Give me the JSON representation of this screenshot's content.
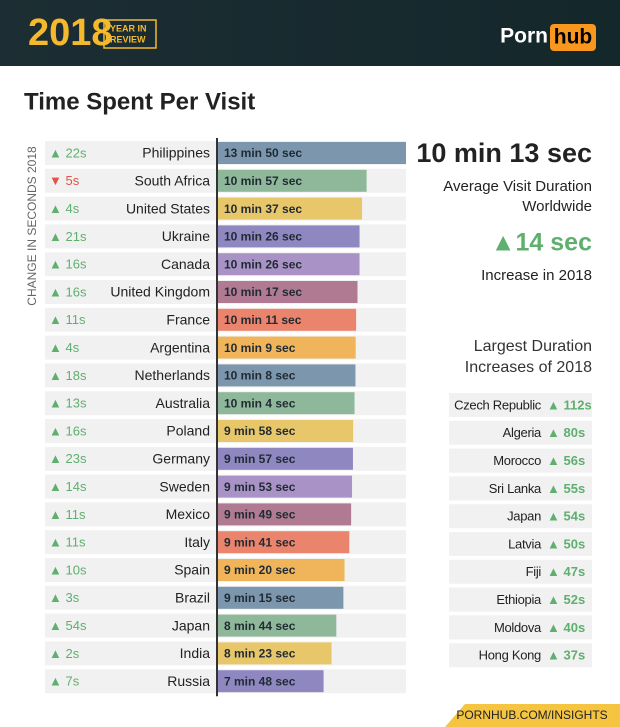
{
  "header": {
    "year": "2018",
    "badge": [
      "YEAR IN",
      "REVIEW"
    ],
    "brand": "Porn",
    "brand_box": "hub"
  },
  "chart_data": {
    "type": "bar",
    "orientation": "horizontal",
    "title": "Time Spent Per Visit",
    "side_label": "CHANGE IN SECONDS 2018",
    "categories": [
      "Philippines",
      "South Africa",
      "United States",
      "Ukraine",
      "Canada",
      "United Kingdom",
      "France",
      "Argentina",
      "Netherlands",
      "Australia",
      "Poland",
      "Germany",
      "Sweden",
      "Mexico",
      "Italy",
      "Spain",
      "Brazil",
      "Japan",
      "India",
      "Russia"
    ],
    "values": [
      830,
      657,
      637,
      626,
      626,
      617,
      611,
      609,
      608,
      604,
      598,
      597,
      593,
      589,
      581,
      560,
      555,
      524,
      503,
      468
    ],
    "value_labels": [
      "13 min 50 sec",
      "10 min 57 sec",
      "10 min 37 sec",
      "10 min 26 sec",
      "10 min 26 sec",
      "10 min 17 sec",
      "10 min 11 sec",
      "10 min 9 sec",
      "10 min 8 sec",
      "10 min 4 sec",
      "9 min 58 sec",
      "9 min 57 sec",
      "9 min 53 sec",
      "9 min 49 sec",
      "9 min 41 sec",
      "9 min 20 sec",
      "9 min 15 sec",
      "8 min 44 sec",
      "8 min 23 sec",
      "7 min 48 sec"
    ],
    "change": {
      "values": [
        22,
        -5,
        4,
        21,
        16,
        16,
        11,
        4,
        18,
        13,
        16,
        23,
        14,
        11,
        11,
        10,
        3,
        54,
        2,
        7
      ],
      "value_labels": [
        "▲ 22s",
        "▼ 5s",
        "▲ 4s",
        "▲ 21s",
        "▲ 16s",
        "▲ 16s",
        "▲ 11s",
        "▲ 4s",
        "▲ 18s",
        "▲ 13s",
        "▲ 16s",
        "▲ 23s",
        "▲ 14s",
        "▲ 11s",
        "▲ 11s",
        "▲ 10s",
        "▲ 3s",
        "▲ 54s",
        "▲ 2s",
        "▲ 7s"
      ]
    },
    "colors": [
      "#7b96ad",
      "#8fb89a",
      "#e8c76a",
      "#8e87c0",
      "#a993c6",
      "#b07b92",
      "#ea846c",
      "#f0b55a"
    ],
    "up_color": "#5faf6f",
    "down_color": "#e0524a",
    "xlim": [
      0,
      830
    ]
  },
  "summary": {
    "average": "10 min 13 sec",
    "average_label": [
      "Average Visit Duration",
      "Worldwide"
    ],
    "increase": "▲14 sec",
    "increase_label": "Increase in 2018"
  },
  "largest_increases": {
    "title": [
      "Largest Duration",
      "Increases of 2018"
    ],
    "countries": [
      "Czech Republic",
      "Algeria",
      "Morocco",
      "Sri Lanka",
      "Japan",
      "Latvia",
      "Fiji",
      "Ethiopia",
      "Moldova",
      "Hong Kong"
    ],
    "changes": [
      "▲ 112s",
      "▲ 80s",
      "▲ 56s",
      "▲ 55s",
      "▲ 54s",
      "▲ 50s",
      "▲ 47s",
      "▲ 52s",
      "▲ 40s",
      "▲ 37s"
    ]
  },
  "footer": "PORNHUB.COM/INSIGHTS"
}
